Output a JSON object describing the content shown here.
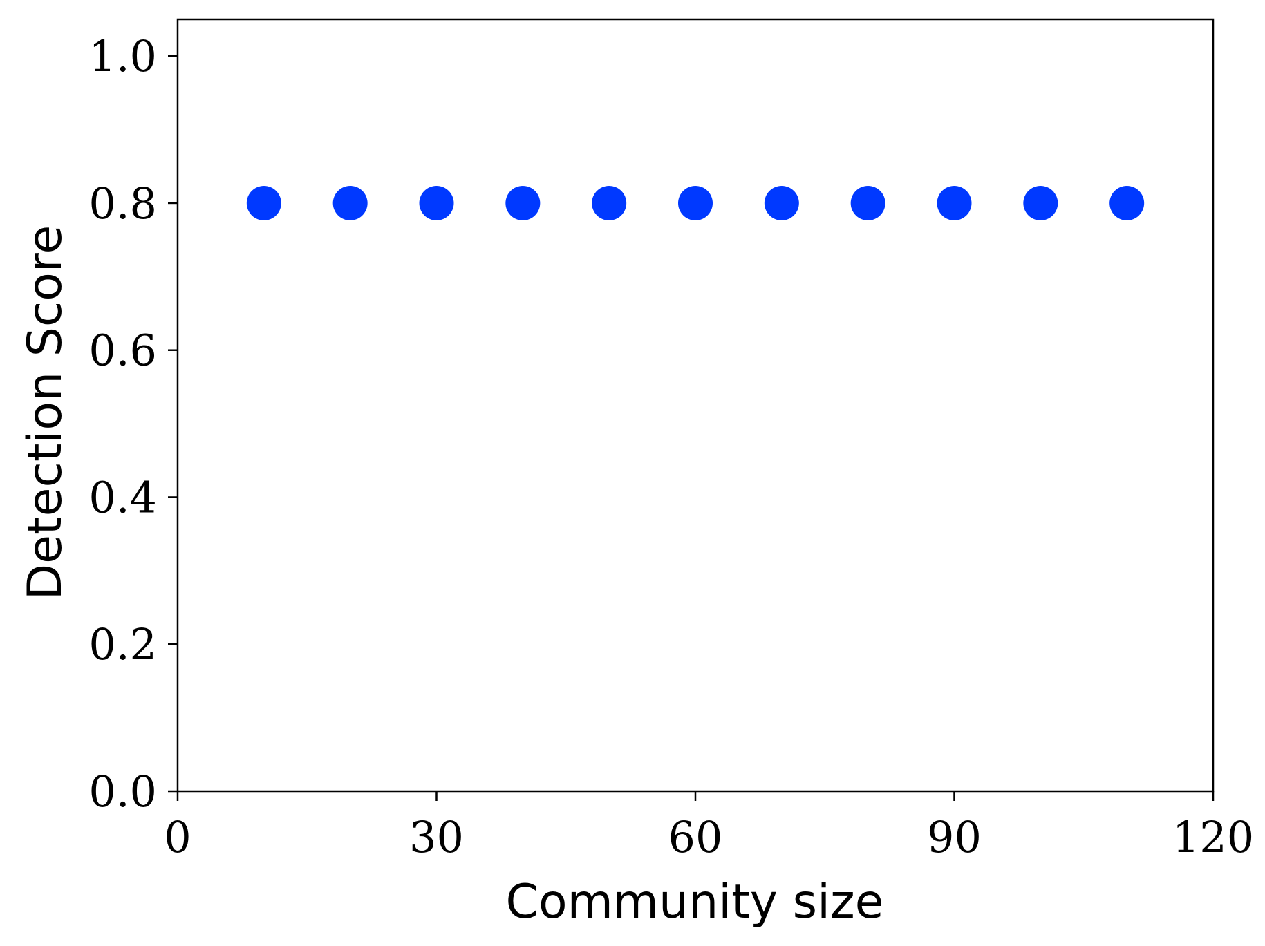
{
  "chart_data": {
    "type": "scatter",
    "title": "",
    "xlabel": "Community size",
    "ylabel": "Detection Score",
    "xlim": [
      0,
      120
    ],
    "ylim": [
      0,
      1.05
    ],
    "xticks": [
      0,
      30,
      60,
      90,
      120
    ],
    "xtick_labels": [
      "0",
      "30",
      "60",
      "90",
      "120"
    ],
    "yticks": [
      0.0,
      0.2,
      0.4,
      0.6,
      0.8,
      1.0
    ],
    "ytick_labels": [
      "0.0",
      "0.2",
      "0.4",
      "0.6",
      "0.8",
      "1.0"
    ],
    "grid": false,
    "legend": "none",
    "series": [
      {
        "color": "#0039ff",
        "x": [
          10,
          20,
          30,
          40,
          50,
          60,
          70,
          80,
          90,
          100,
          110
        ],
        "y": [
          0.8,
          0.8,
          0.8,
          0.8,
          0.8,
          0.8,
          0.8,
          0.8,
          0.8,
          0.8,
          0.8
        ]
      }
    ]
  }
}
